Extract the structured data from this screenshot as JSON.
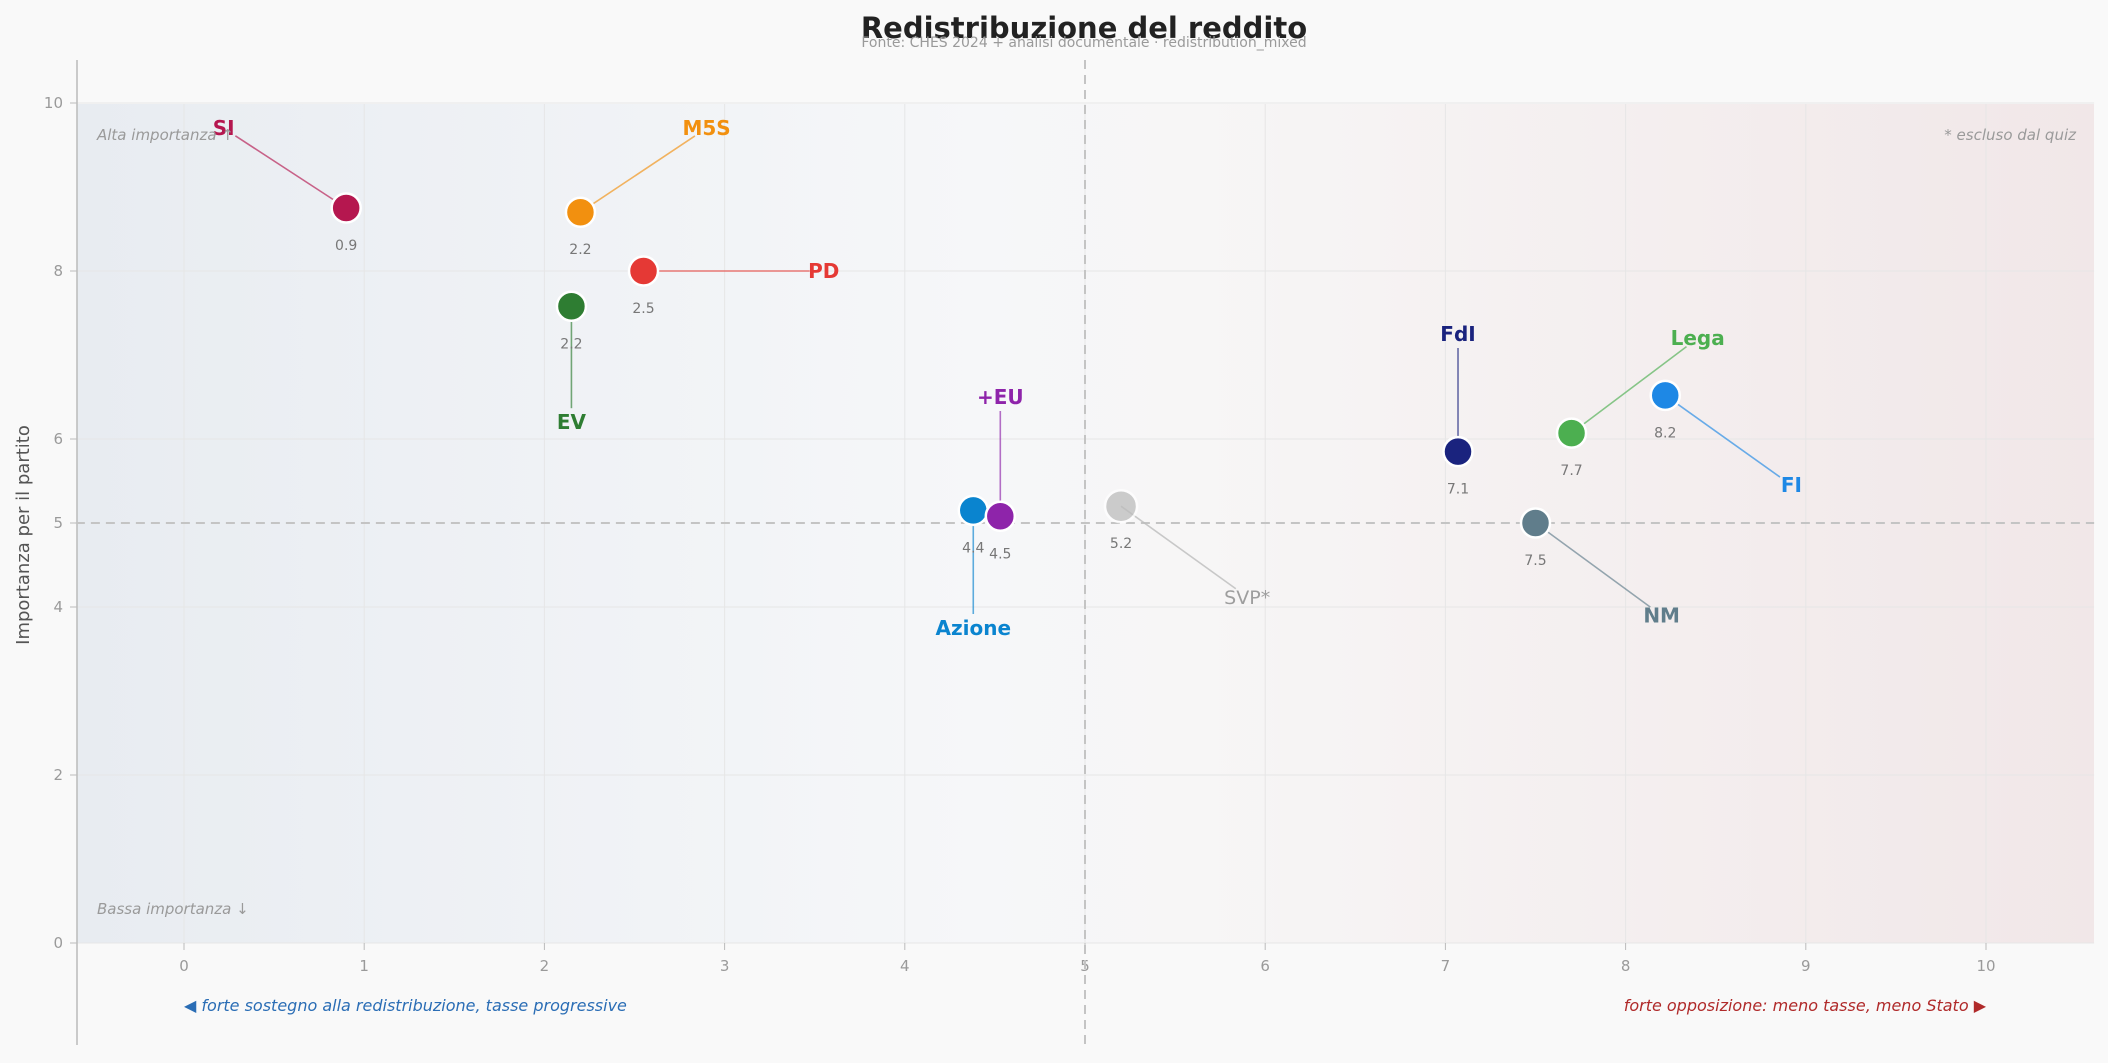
{
  "chart_data": {
    "type": "scatter",
    "title": "Redistribuzione del reddito",
    "subtitle": "Fonte: CHES 2024 + analisi documentale  ·  redistribution_mixed",
    "xlabel": "",
    "ylabel": "Importanza per il partito",
    "xlim": [
      -0.6,
      10.6
    ],
    "ylim": [
      0,
      10.5
    ],
    "x_ticks": [
      "0",
      "1",
      "2",
      "3",
      "4",
      "5",
      "6",
      "7",
      "8",
      "9",
      "10"
    ],
    "y_ticks": [
      "0",
      "2",
      "4",
      "5",
      "6",
      "8",
      "10"
    ],
    "grid": true,
    "reference_lines": {
      "x": 5,
      "y": 5
    },
    "corner_labels": {
      "top_left": "Alta importanza ↑",
      "bottom_left": "Bassa importanza ↓",
      "top_right": "* escluso dal quiz"
    },
    "axis_hints": {
      "left": "◀  forte sostegno alla redistribuzione, tasse progressive",
      "right": "forte opposizione: meno tasse, meno Stato  ▶",
      "left_color": "#2a6db5",
      "right_color": "#b02a2a"
    },
    "points": [
      {
        "party": "SI",
        "x": 0.9,
        "y": 8.75,
        "value_label": "0.9",
        "color": "#b5174f",
        "label_x": 0.22,
        "label_y": 9.7
      },
      {
        "party": "M5S",
        "x": 2.2,
        "y": 8.7,
        "value_label": "2.2",
        "color": "#f2900f",
        "label_x": 2.9,
        "label_y": 9.7
      },
      {
        "party": "PD",
        "x": 2.55,
        "y": 8.0,
        "value_label": "2.5",
        "color": "#e53935",
        "label_x": 3.55,
        "label_y": 8.0
      },
      {
        "party": "EV",
        "x": 2.15,
        "y": 7.58,
        "value_label": "2.2",
        "color": "#2e7d32",
        "label_x": 2.15,
        "label_y": 6.2
      },
      {
        "party": "Azione",
        "x": 4.38,
        "y": 5.15,
        "value_label": "4.4",
        "color": "#0a84cf",
        "label_x": 4.38,
        "label_y": 3.75
      },
      {
        "party": "+EU",
        "x": 4.53,
        "y": 5.08,
        "value_label": "4.5",
        "color": "#8e24aa",
        "label_x": 4.53,
        "label_y": 6.5
      },
      {
        "party": "SVP*",
        "x": 5.2,
        "y": 5.2,
        "value_label": "5.2",
        "color": "#bdbdbd",
        "label_x": 5.9,
        "label_y": 4.12,
        "faded": true
      },
      {
        "party": "FdI",
        "x": 7.07,
        "y": 5.85,
        "value_label": "7.1",
        "color": "#1a237e",
        "label_x": 7.07,
        "label_y": 7.25
      },
      {
        "party": "Lega",
        "x": 7.7,
        "y": 6.07,
        "value_label": "7.7",
        "color": "#4caf50",
        "label_x": 8.4,
        "label_y": 7.2
      },
      {
        "party": "FI",
        "x": 8.22,
        "y": 6.52,
        "value_label": "8.2",
        "color": "#1e88e5",
        "label_x": 8.92,
        "label_y": 5.45
      },
      {
        "party": "NM",
        "x": 7.5,
        "y": 5.0,
        "value_label": "7.5",
        "color": "#607d8b",
        "label_x": 8.2,
        "label_y": 3.9
      }
    ]
  }
}
